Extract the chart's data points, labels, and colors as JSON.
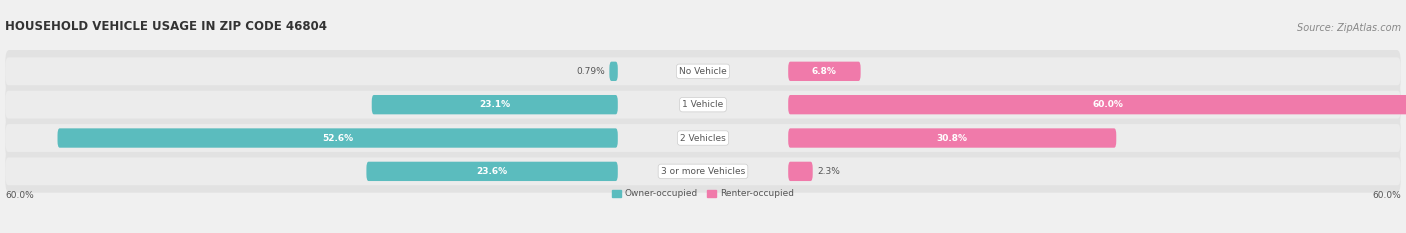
{
  "title": "HOUSEHOLD VEHICLE USAGE IN ZIP CODE 46804",
  "source": "Source: ZipAtlas.com",
  "categories": [
    "No Vehicle",
    "1 Vehicle",
    "2 Vehicles",
    "3 or more Vehicles"
  ],
  "owner_values": [
    0.79,
    23.1,
    52.6,
    23.6
  ],
  "renter_values": [
    6.8,
    60.0,
    30.8,
    2.3
  ],
  "owner_color": "#5bbcbe",
  "renter_color": "#f07aaa",
  "owner_label": "Owner-occupied",
  "renter_label": "Renter-occupied",
  "max_val": 60.0,
  "axis_labels": [
    "60.0%",
    "60.0%"
  ],
  "bg_color": "#f0f0f0",
  "row_bg_color": "#e8e8e8",
  "title_fontsize": 8.5,
  "source_fontsize": 7,
  "label_fontsize": 6.5,
  "value_fontsize": 6.5
}
